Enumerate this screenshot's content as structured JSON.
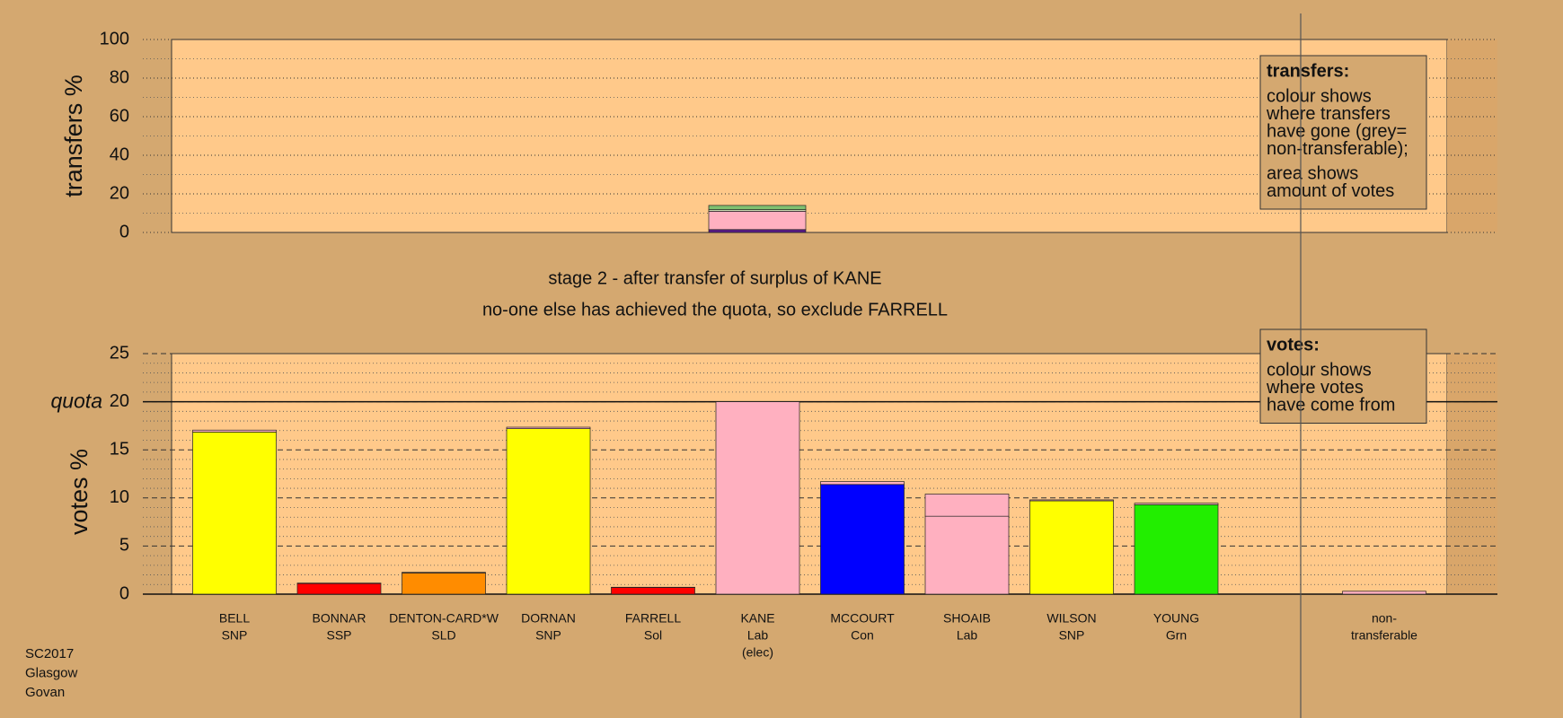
{
  "chart_data": [
    {
      "type": "bar",
      "stacked": true,
      "ylabel": "transfers %",
      "ylim": [
        0,
        100
      ],
      "yticks": [
        0,
        20,
        40,
        60,
        80,
        100
      ],
      "grid": true,
      "categories": [
        null
      ],
      "series": [
        {
          "color": "#5a1a8a",
          "values": [
            1.5
          ]
        },
        {
          "color": "#ffb0c0",
          "values": [
            9.5
          ]
        },
        {
          "color": "#c8d8b0",
          "values": [
            0.8
          ]
        },
        {
          "color": "#80c070",
          "values": [
            2.2
          ]
        }
      ],
      "legend": {
        "title": "transfers:",
        "paragraphs": [
          [
            "colour shows",
            "where transfers",
            "have gone (grey=",
            "non-transferable);"
          ],
          [
            "area shows",
            "amount of votes"
          ]
        ]
      }
    },
    {
      "type": "bar",
      "stacked": true,
      "ylabel": "votes %",
      "ylim": [
        0,
        25
      ],
      "yticks": [
        0,
        5,
        10,
        15,
        20,
        25
      ],
      "grid": true,
      "title": [
        "stage 2 - after transfer of surplus of KANE",
        "no-one else has achieved the quota, so exclude FARRELL"
      ],
      "quota": {
        "value": 20,
        "label": "quota"
      },
      "categories": [
        [
          "BELL",
          "SNP"
        ],
        [
          "BONNAR",
          "SSP"
        ],
        [
          "DENTON-CARD*W",
          "SLD"
        ],
        [
          "DORNAN",
          "SNP"
        ],
        [
          "FARRELL",
          "Sol"
        ],
        [
          "KANE",
          "Lab",
          "(elec)"
        ],
        [
          "MCCOURT",
          "Con"
        ],
        [
          "SHOAIB",
          "Lab"
        ],
        [
          "WILSON",
          "SNP"
        ],
        [
          "YOUNG",
          "Grn"
        ],
        [
          "non-",
          "transferable"
        ]
      ],
      "series": [
        {
          "colors": [
            "#ffff00",
            "#ff0000",
            "#ff8c00",
            "#ffff00",
            "#ff0000",
            "#ffb0c0",
            "#0000ff",
            "#ffb0c0",
            "#ffff00",
            "#22ee00",
            null
          ],
          "values": [
            16.85,
            1.1,
            2.2,
            17.2,
            0.7,
            20,
            11.4,
            8.1,
            9.7,
            9.3,
            null
          ]
        },
        {
          "color": "#ffb0c0",
          "values": [
            0.2,
            0.05,
            0.07,
            0.15,
            0.02,
            null,
            0.3,
            2.3,
            0.1,
            0.15,
            0.3
          ]
        }
      ],
      "legend": {
        "title": "votes:",
        "paragraphs": [
          [
            "colour shows",
            "where votes",
            "have come from"
          ]
        ]
      }
    }
  ],
  "caption": [
    "SC2017",
    "Glasgow",
    "Govan"
  ]
}
